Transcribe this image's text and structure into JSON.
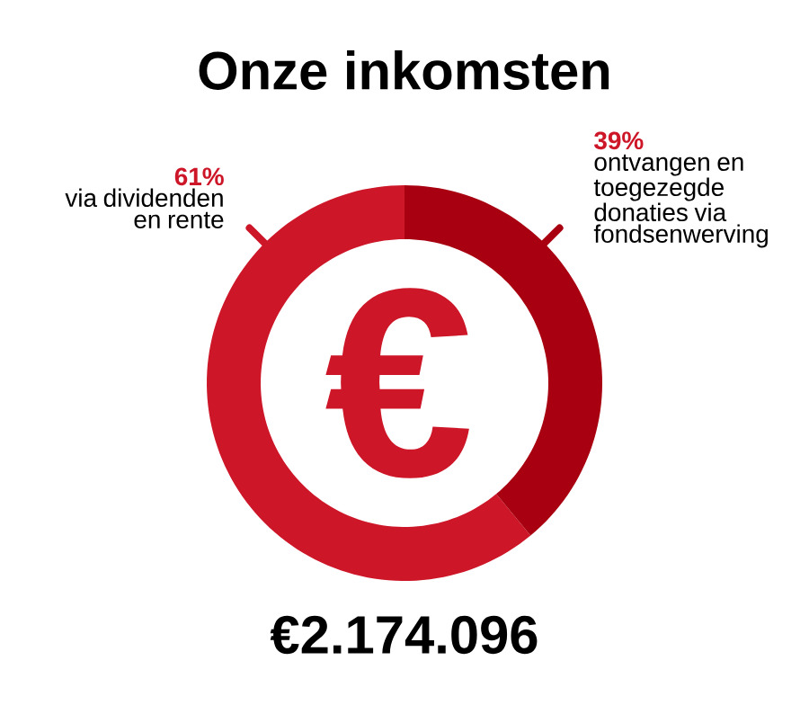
{
  "chart_data": {
    "type": "donut",
    "title": "Onze inkomsten",
    "categories": [
      "via dividenden en rente",
      "ontvangen en toegezegde donaties via fondsenwerving"
    ],
    "values": [
      61,
      39
    ],
    "value_labels": [
      "61%",
      "39%"
    ],
    "colors": [
      "#cd1628",
      "#a80010"
    ],
    "annotations": [
      "€",
      "€2.174.096"
    ]
  }
}
